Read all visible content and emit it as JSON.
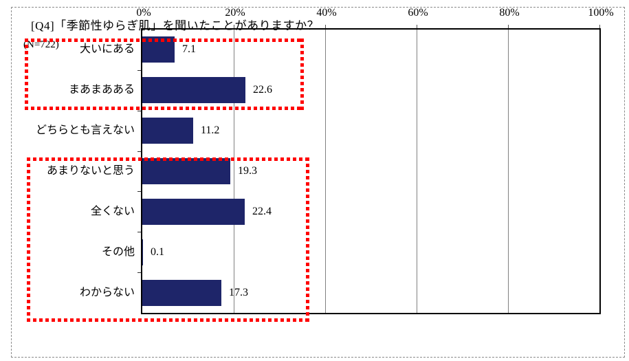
{
  "title": "[Q4]「季節性ゆらぎ肌」を聞いたことがありますか？",
  "n_label": "(N=722)",
  "chart_data": {
    "type": "bar",
    "orientation": "horizontal",
    "title": "[Q4]「季節性ゆらぎ肌」を聞いたことがありますか？",
    "sample_label": "(N=722)",
    "categories": [
      "大いにある",
      "まあまあある",
      "どちらとも言えない",
      "あまりないと思う",
      "全くない",
      "その他",
      "わからない"
    ],
    "values": [
      7.1,
      22.6,
      11.2,
      19.3,
      22.4,
      0.1,
      17.3
    ],
    "value_labels": [
      "7.1",
      "22.6",
      "11.2",
      "19.3",
      "22.4",
      "0.1",
      "17.3"
    ],
    "x_axis": {
      "position": "top",
      "min": 0,
      "max": 100,
      "tick_step": 20,
      "tick_labels": [
        "0%",
        "20%",
        "40%",
        "60%",
        "80%",
        "100%"
      ]
    },
    "grid": "vertical-gridlines-on",
    "legend": "none",
    "colors": {
      "bar": "#1e2569",
      "gridline": "#808080",
      "plot_border": "#000000",
      "text": "#000000",
      "highlight": "#ff0000",
      "background": "#ffffff"
    },
    "annotations": {
      "highlight_groups": [
        {
          "style": "red-dashed-box",
          "categories": [
            "大いにある",
            "まあまあある"
          ]
        },
        {
          "style": "red-dashed-box",
          "categories": [
            "あまりないと思う",
            "全くない",
            "その他",
            "わからない"
          ]
        }
      ]
    }
  }
}
